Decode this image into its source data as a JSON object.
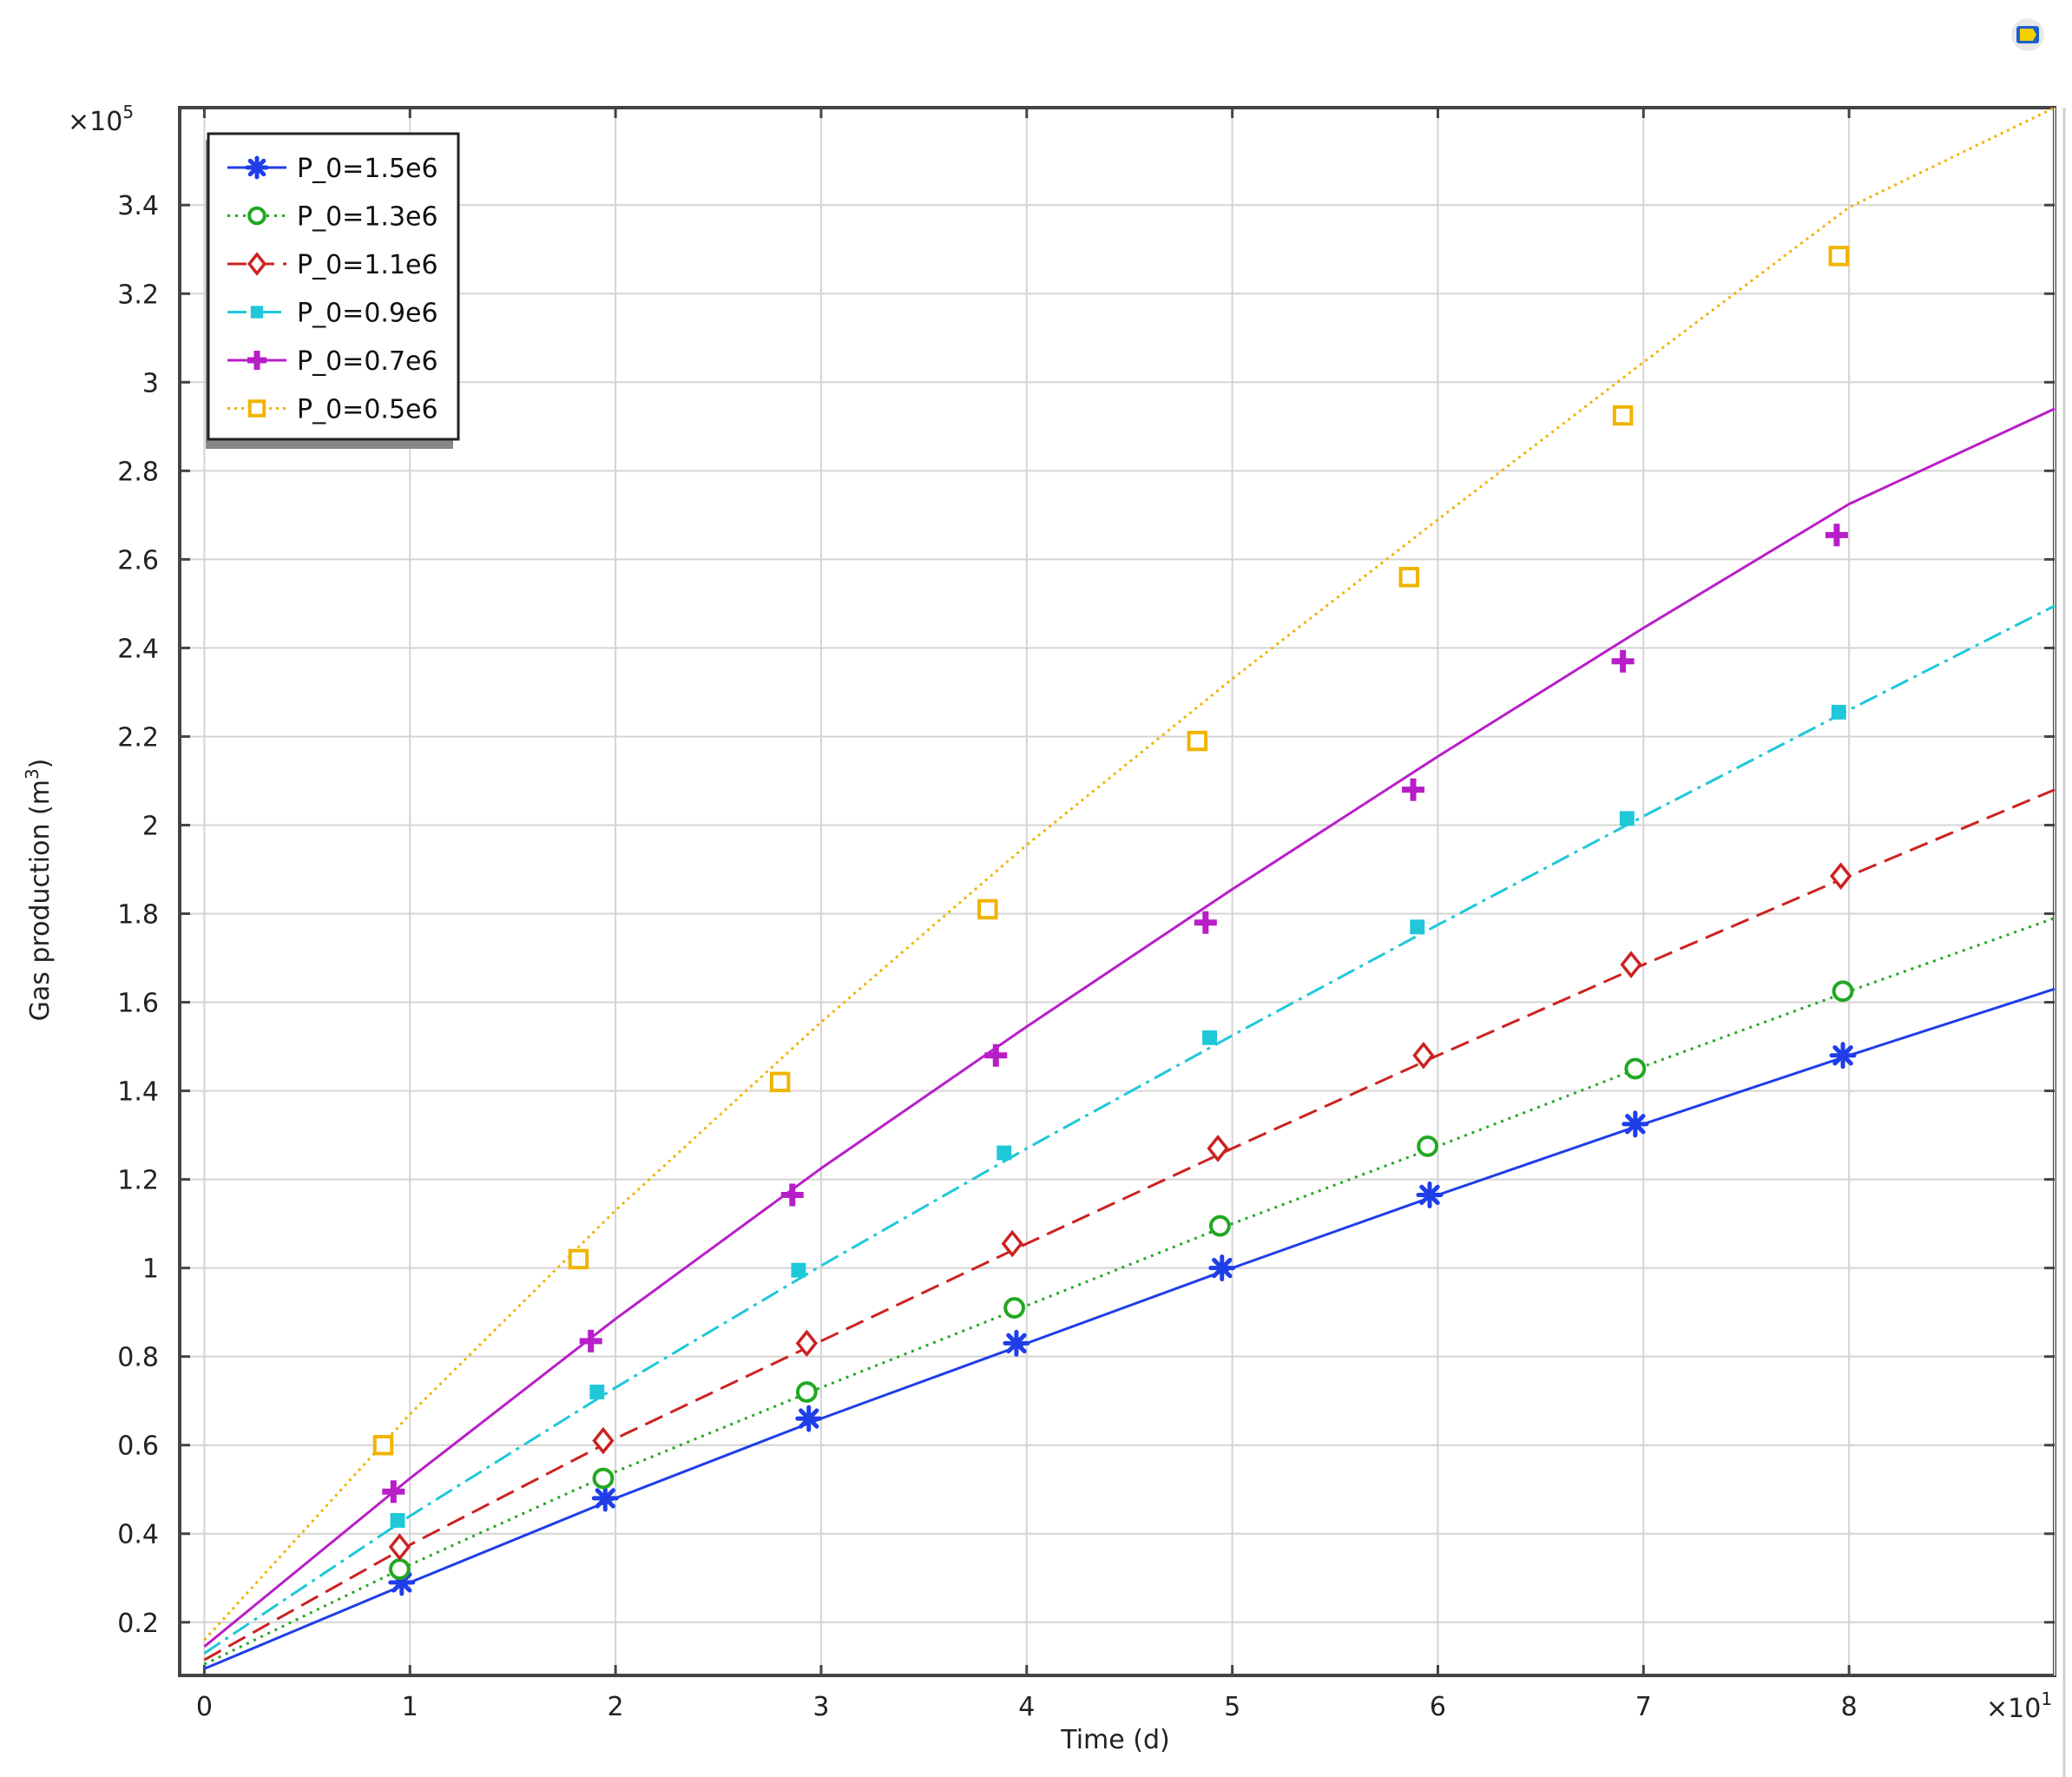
{
  "chart_data": {
    "type": "line",
    "xlabel": "Time (d)",
    "ylabel": "Gas production (m",
    "ylabel_sup": "3",
    "ylabel_close": ")",
    "x_multiplier_base": "×10",
    "x_multiplier_exp": "1",
    "y_multiplier_base": "×10",
    "y_multiplier_exp": "5",
    "xlim": [
      -0.12,
      9.0
    ],
    "ylim": [
      0.08,
      3.62
    ],
    "x_ticks": [
      0,
      1,
      2,
      3,
      4,
      5,
      6,
      7,
      8
    ],
    "x_tick_labels": [
      "0",
      "1",
      "2",
      "3",
      "4",
      "5",
      "6",
      "7",
      "8"
    ],
    "y_ticks": [
      0.2,
      0.4,
      0.6,
      0.8,
      1.0,
      1.2,
      1.4,
      1.6,
      1.8,
      2.0,
      2.2,
      2.4,
      2.6,
      2.8,
      3.0,
      3.2,
      3.4
    ],
    "y_tick_labels": [
      "0.2",
      "0.4",
      "0.6",
      "0.8",
      "1",
      "1.2",
      "1.4",
      "1.6",
      "1.8",
      "2",
      "2.2",
      "2.4",
      "2.6",
      "2.8",
      "3",
      "3.2",
      "3.4"
    ],
    "grid": true,
    "legend_position": "top-left",
    "series": [
      {
        "name": "P_0=1.5e6",
        "color": "#1f3ee8",
        "dash": "",
        "marker": "asterisk",
        "x": [
          0,
          1,
          2,
          3,
          4,
          5,
          6,
          7,
          8,
          9
        ],
        "y": [
          0.095,
          0.29,
          0.48,
          0.66,
          0.83,
          1.0,
          1.165,
          1.325,
          1.48,
          1.63
        ],
        "marker_x": [
          0.96,
          1.95,
          2.94,
          3.95,
          4.95,
          5.96,
          6.96,
          7.97
        ],
        "marker_y": [
          0.29,
          0.48,
          0.66,
          0.83,
          1.0,
          1.165,
          1.325,
          1.48
        ]
      },
      {
        "name": "P_0=1.3e6",
        "color": "#22a822",
        "dash": "3 6",
        "marker": "circle",
        "x": [
          0,
          1,
          2,
          3,
          4,
          5,
          6,
          7,
          8,
          9
        ],
        "y": [
          0.105,
          0.33,
          0.54,
          0.73,
          0.915,
          1.1,
          1.275,
          1.455,
          1.625,
          1.79
        ],
        "marker_x": [
          0.95,
          1.94,
          2.93,
          3.94,
          4.94,
          5.95,
          6.96,
          7.97
        ],
        "marker_y": [
          0.32,
          0.525,
          0.72,
          0.91,
          1.095,
          1.275,
          1.45,
          1.625
        ]
      },
      {
        "name": "P_0=1.1e6",
        "color": "#cc2222",
        "dash": "22 10",
        "marker": "diamond",
        "x": [
          0,
          1,
          2,
          3,
          4,
          5,
          6,
          7,
          8,
          9
        ],
        "y": [
          0.115,
          0.375,
          0.615,
          0.835,
          1.055,
          1.27,
          1.48,
          1.685,
          1.885,
          2.08
        ],
        "marker_x": [
          0.95,
          1.94,
          2.93,
          3.93,
          4.93,
          5.93,
          6.94,
          7.96
        ],
        "marker_y": [
          0.37,
          0.61,
          0.83,
          1.055,
          1.27,
          1.48,
          1.685,
          1.885
        ]
      },
      {
        "name": "P_0=0.9e6",
        "color": "#1ec8d8",
        "dash": "22 7 4 7",
        "marker": "square-filled",
        "x": [
          0,
          1,
          2,
          3,
          4,
          5,
          6,
          7,
          8,
          9
        ],
        "y": [
          0.13,
          0.44,
          0.73,
          1.005,
          1.27,
          1.525,
          1.775,
          2.02,
          2.26,
          2.495
        ],
        "marker_x": [
          0.94,
          1.91,
          2.89,
          3.89,
          4.89,
          5.9,
          6.92,
          7.95
        ],
        "marker_y": [
          0.43,
          0.72,
          0.995,
          1.26,
          1.52,
          1.77,
          2.015,
          2.255
        ]
      },
      {
        "name": "P_0=0.7e6",
        "color": "#b81ec8",
        "dash": "",
        "marker": "plus",
        "x": [
          0,
          1,
          2,
          3,
          4,
          5,
          6,
          7,
          8,
          9
        ],
        "y": [
          0.145,
          0.525,
          0.885,
          1.225,
          1.545,
          1.855,
          2.155,
          2.445,
          2.725,
          2.94
        ],
        "marker_x": [
          0.92,
          1.88,
          2.86,
          3.85,
          4.87,
          5.88,
          6.9,
          7.94
        ],
        "marker_y": [
          0.495,
          0.835,
          1.165,
          1.48,
          1.78,
          2.08,
          2.37,
          2.655
        ]
      },
      {
        "name": "P_0=0.5e6",
        "color": "#f0b400",
        "dash": "3 5",
        "marker": "square",
        "x": [
          0,
          1,
          2,
          3,
          4,
          5,
          6,
          7,
          8,
          9
        ],
        "y": [
          0.16,
          0.67,
          1.13,
          1.555,
          1.955,
          2.33,
          2.69,
          3.045,
          3.395,
          3.62
        ],
        "marker_x": [
          0.87,
          1.82,
          2.8,
          3.81,
          4.83,
          5.86,
          6.9,
          7.95
        ],
        "marker_y": [
          0.6,
          1.02,
          1.42,
          1.81,
          2.19,
          2.56,
          2.925,
          3.285
        ]
      }
    ]
  }
}
